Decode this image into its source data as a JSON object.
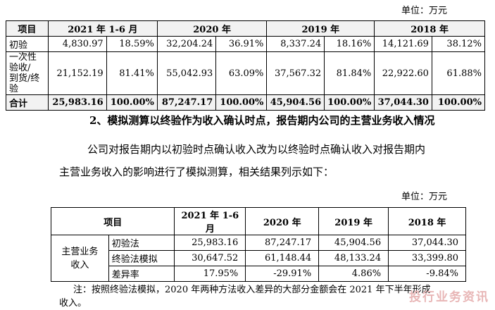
{
  "unit_label": "单位：万元",
  "table1": {
    "headers": [
      "项目",
      "2021 年 1-6 月",
      "2020 年",
      "2019 年",
      "2018 年"
    ],
    "rows": [
      {
        "item": "初验",
        "values": [
          "4,830.97",
          "18.59%",
          "32,204.24",
          "36.91%",
          "8,337.24",
          "18.16%",
          "14,121.69",
          "38.12%"
        ]
      },
      {
        "item": "一次性验收/到货/终验",
        "item_line1": "一次性验收/",
        "item_line2": "到货/终验",
        "values": [
          "21,152.19",
          "81.41%",
          "55,042.93",
          "63.09%",
          "37,567.32",
          "81.84%",
          "22,922.60",
          "61.88%"
        ]
      },
      {
        "item": "合计",
        "values": [
          "25,983.16",
          "100.00%",
          "87,247.17",
          "100.00%",
          "45,904.56",
          "100.00%",
          "37,044.30",
          "100.00%"
        ]
      }
    ]
  },
  "heading": "2、模拟测算以终验作为收入确认时点，报告期内公司的主营业务收入情况",
  "paragraph_line1": "公司对报告期内以初验时点确认收入改为以终验时点确认收入对报告期内",
  "paragraph_line2": "主营业务收入的影响进行了模拟测算，相关结果列示如下：",
  "table2": {
    "headers": [
      "项目",
      "2021 年 1-6 月",
      "2020 年",
      "2019 年",
      "2018 年"
    ],
    "group_line1": "主营业务",
    "group_line2": "收入",
    "rows": [
      {
        "item": "初验法",
        "values": [
          "25,983.16",
          "87,247.17",
          "45,904.56",
          "37,044.30"
        ]
      },
      {
        "item": "终验法模拟",
        "values": [
          "30,647.52",
          "61,148.44",
          "48,133.24",
          "33,399.80"
        ]
      },
      {
        "item": "差异率",
        "values": [
          "17.95%",
          "-29.91%",
          "4.86%",
          "-9.84%"
        ]
      }
    ]
  },
  "note_line1": "注：按照终验法模拟，2020 年两种方法收入差异的大部分金额会在 2021 年下半年形成",
  "note_line2": "收入。",
  "watermark": "投行业务资讯"
}
